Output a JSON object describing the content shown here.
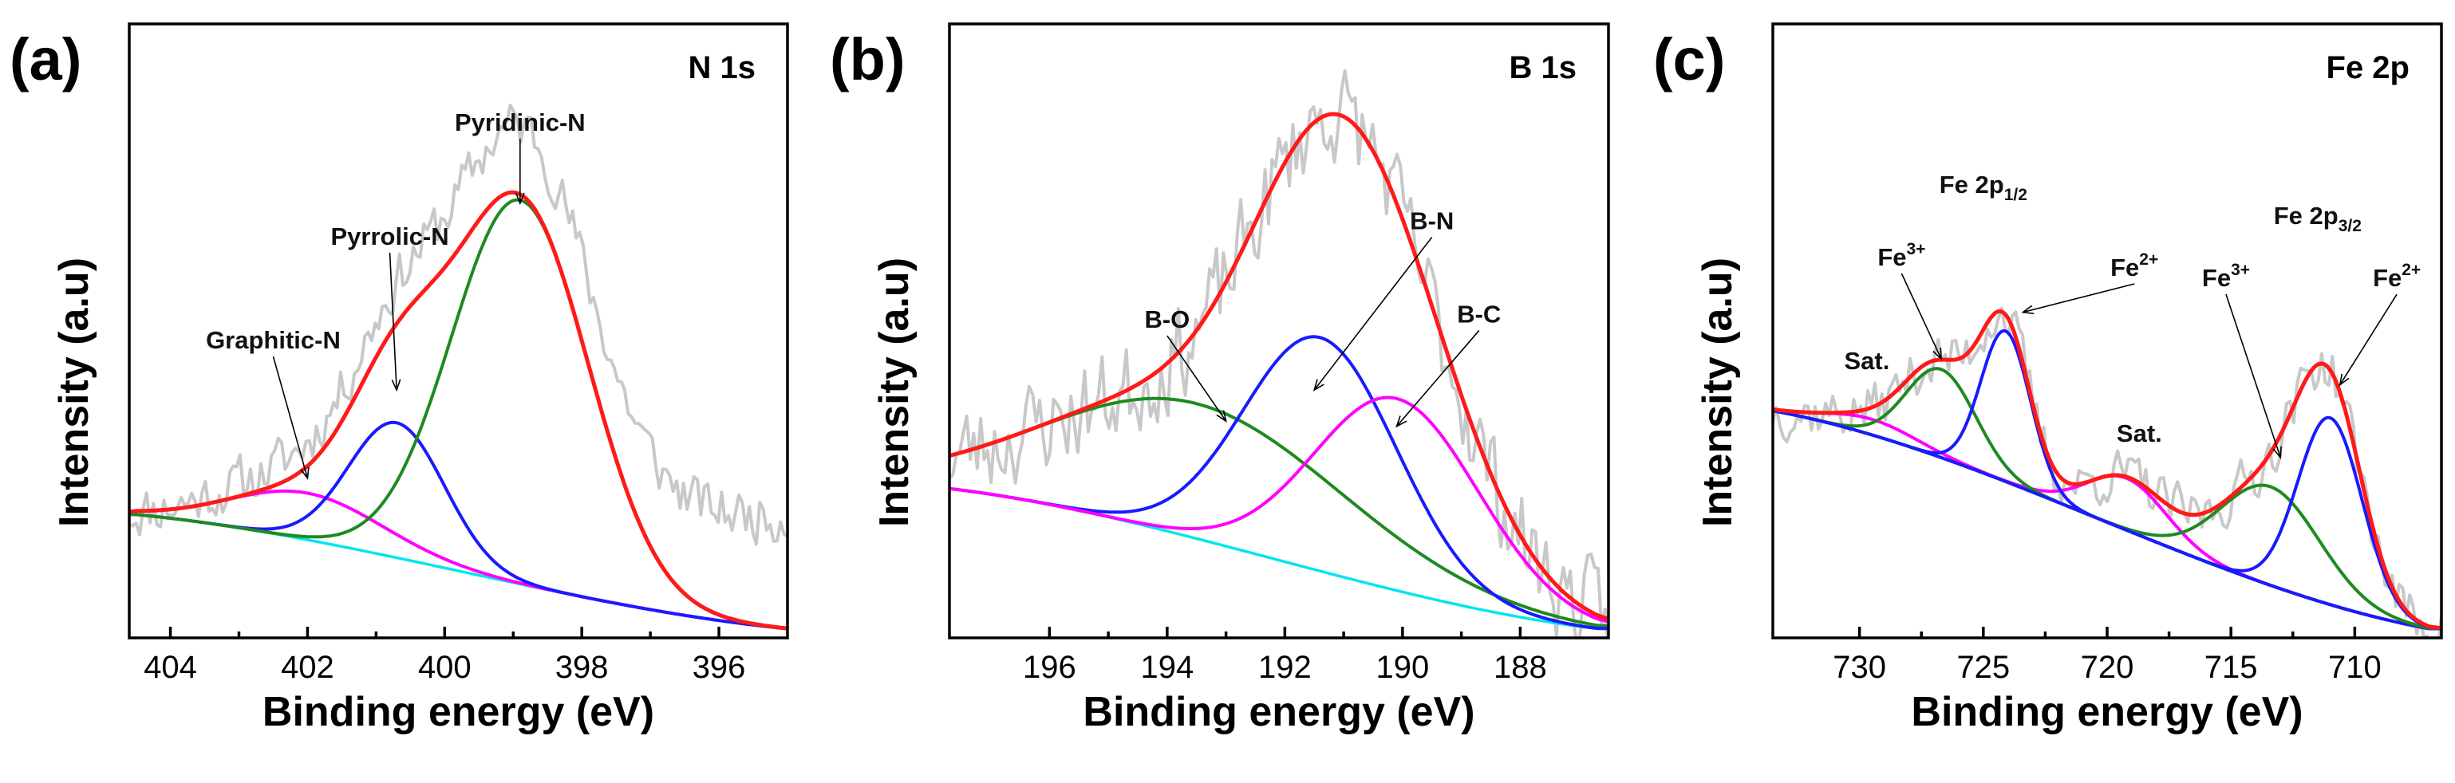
{
  "chart_data": [
    {
      "type": "line",
      "panel_label": "(a)",
      "title": "N 1s",
      "xlabel": "Binding energy (eV)",
      "ylabel": "Intensity (a.u)",
      "xlim": [
        404.6,
        395
      ],
      "ylim": [
        0,
        1
      ],
      "xticks": [
        404,
        402,
        400,
        398,
        396
      ],
      "series": [
        {
          "name": "raw",
          "color": "#c8c8c8",
          "width": 4,
          "kind": "noisy",
          "seed": 11,
          "noise": 0.045,
          "base": [
            [
              404.5,
              0.22
            ],
            [
              0.0,
              0.0
            ]
          ],
          "peaks": [
            [
              398.9,
              0.74,
              1.0
            ],
            [
              400.7,
              0.26,
              0.7
            ],
            [
              402.0,
              0.09,
              1.1
            ]
          ]
        },
        {
          "name": "background",
          "color": "#00e5ee",
          "width": 3.5,
          "kind": "model",
          "base": [
            [
              404.5,
              0.22
            ],
            [
              395,
              0.0
            ]
          ],
          "peaks": []
        },
        {
          "name": "Graphitic-N",
          "color": "#ff00ff",
          "width": 4,
          "kind": "model",
          "base": [
            [
              404.5,
              0.22
            ],
            [
              395,
              0.0
            ]
          ],
          "peaks": [
            [
              402.0,
              0.09,
              1.1
            ]
          ]
        },
        {
          "name": "Pyrrolic-N",
          "color": "#1a1aff",
          "width": 4,
          "kind": "model",
          "base": [
            [
              404.5,
              0.22
            ],
            [
              395,
              0.0
            ]
          ],
          "peaks": [
            [
              400.7,
              0.26,
              0.7
            ]
          ]
        },
        {
          "name": "Pyridinic-N",
          "color": "#1f8a1f",
          "width": 4,
          "kind": "model",
          "base": [
            [
              404.5,
              0.22
            ],
            [
              395,
              0.0
            ]
          ],
          "peaks": [
            [
              398.9,
              0.74,
              1.0
            ]
          ]
        },
        {
          "name": "envelope",
          "color": "#ff1a1a",
          "width": 5,
          "kind": "model",
          "base": [
            [
              404.5,
              0.22
            ],
            [
              395,
              0.0
            ]
          ],
          "peaks": [
            [
              398.9,
              0.74,
              1.0
            ],
            [
              400.7,
              0.26,
              0.7
            ],
            [
              402.0,
              0.09,
              1.1
            ]
          ]
        }
      ],
      "annotations": [
        {
          "text": "Pyridinic-N",
          "x": 398.9,
          "y": 0.96,
          "tx": 398.9,
          "ty": 0.82
        },
        {
          "text": "Pyrrolic-N",
          "x": 400.8,
          "y": 0.74,
          "tx": 400.7,
          "ty": 0.46
        },
        {
          "text": "Graphitic-N",
          "x": 402.5,
          "y": 0.54,
          "tx": 402.0,
          "ty": 0.29
        }
      ]
    },
    {
      "type": "line",
      "panel_label": "(b)",
      "title": "B 1s",
      "xlabel": "Binding energy (eV)",
      "ylabel": "Intensity (a.u)",
      "xlim": [
        197.7,
        186.5
      ],
      "ylim": [
        0,
        1
      ],
      "xticks": [
        196,
        194,
        192,
        190,
        188
      ],
      "series": [
        {
          "name": "raw",
          "color": "#c8c8c8",
          "width": 4,
          "kind": "noisy",
          "seed": 23,
          "noise": 0.085,
          "base": [
            [
              197.7,
              0.27
            ],
            [
              186.7,
              0.0
            ]
          ],
          "peaks": [
            [
              193.5,
              0.26,
              2.5
            ],
            [
              191.4,
              0.45,
              1.3
            ],
            [
              190.1,
              0.37,
              1.4
            ]
          ]
        },
        {
          "name": "background",
          "color": "#00e5ee",
          "width": 3.5,
          "kind": "model",
          "base": [
            [
              197.7,
              0.27
            ],
            [
              186.7,
              0.0
            ]
          ],
          "peaks": []
        },
        {
          "name": "B-O",
          "color": "#1f8a1f",
          "width": 4,
          "kind": "model",
          "base": [
            [
              197.7,
              0.27
            ],
            [
              186.7,
              0.0
            ]
          ],
          "peaks": [
            [
              193.5,
              0.26,
              2.5
            ]
          ]
        },
        {
          "name": "B-N",
          "color": "#1a1aff",
          "width": 4,
          "kind": "model",
          "base": [
            [
              197.7,
              0.27
            ],
            [
              186.7,
              0.0
            ]
          ],
          "peaks": [
            [
              191.4,
              0.45,
              1.3
            ]
          ]
        },
        {
          "name": "B-C",
          "color": "#ff00ff",
          "width": 4,
          "kind": "model",
          "base": [
            [
              197.7,
              0.27
            ],
            [
              186.7,
              0.0
            ]
          ],
          "peaks": [
            [
              190.1,
              0.37,
              1.4
            ]
          ]
        },
        {
          "name": "envelope",
          "color": "#ff1a1a",
          "width": 5,
          "kind": "model",
          "base": [
            [
              197.7,
              0.27
            ],
            [
              186.7,
              0.0
            ]
          ],
          "peaks": [
            [
              193.5,
              0.26,
              2.5
            ],
            [
              191.4,
              0.45,
              1.3
            ],
            [
              190.1,
              0.37,
              1.4
            ]
          ]
        }
      ],
      "annotations": [
        {
          "text": "B-O",
          "x": 194.0,
          "y": 0.58,
          "tx": 193.0,
          "ty": 0.4
        },
        {
          "text": "B-N",
          "x": 189.5,
          "y": 0.77,
          "tx": 191.5,
          "ty": 0.46
        },
        {
          "text": "B-C",
          "x": 188.7,
          "y": 0.59,
          "tx": 190.1,
          "ty": 0.39
        }
      ]
    },
    {
      "type": "line",
      "panel_label": "(c)",
      "title": "Fe 2p",
      "xlabel": "Binding energy (eV)",
      "ylabel": "Intensity (a.u)",
      "xlim": [
        733.5,
        706.5
      ],
      "ylim": [
        0,
        1
      ],
      "xticks": [
        730,
        725,
        720,
        715,
        710
      ],
      "series": [
        {
          "name": "raw",
          "color": "#c8c8c8",
          "width": 4,
          "kind": "noisy",
          "seed": 37,
          "noise": 0.045,
          "base": [
            [
              733.5,
              0.42
            ],
            [
              707,
              0.0
            ]
          ],
          "peaks": [
            [
              729.5,
              0.03,
              1.8
            ],
            [
              726.7,
              0.17,
              1.4
            ],
            [
              724.1,
              0.29,
              1.0
            ],
            [
              719.2,
              0.1,
              1.6
            ],
            [
              713.4,
              0.19,
              2.0
            ],
            [
              711.0,
              0.36,
              1.3
            ]
          ]
        },
        {
          "name": "background",
          "color": "#00e5ee",
          "width": 3.5,
          "kind": "model",
          "base": [
            [
              733.5,
              0.42
            ],
            [
              707,
              0.0
            ]
          ],
          "peaks": []
        },
        {
          "name": "Sat.",
          "color": "#ff00ff",
          "width": 4,
          "kind": "model",
          "base": [
            [
              733.5,
              0.42
            ],
            [
              707,
              0.0
            ]
          ],
          "peaks": [
            [
              729.5,
              0.03,
              1.8
            ],
            [
              719.2,
              0.1,
              1.6
            ]
          ]
        },
        {
          "name": "Fe3+ (2p1/2)",
          "color": "#1f8a1f",
          "width": 4,
          "kind": "model",
          "base": [
            [
              733.5,
              0.42
            ],
            [
              707,
              0.0
            ]
          ],
          "peaks": [
            [
              726.7,
              0.17,
              1.4
            ]
          ]
        },
        {
          "name": "Fe2+ (2p1/2)",
          "color": "#1a1aff",
          "width": 4,
          "kind": "model",
          "base": [
            [
              733.5,
              0.42
            ],
            [
              707,
              0.0
            ]
          ],
          "peaks": [
            [
              724.1,
              0.29,
              1.0
            ]
          ]
        },
        {
          "name": "Fe3+ (2p3/2)",
          "color": "#1f8a1f",
          "width": 4,
          "kind": "model",
          "base": [
            [
              733.5,
              0.42
            ],
            [
              707,
              0.0
            ]
          ],
          "peaks": [
            [
              713.4,
              0.19,
              2.0
            ]
          ]
        },
        {
          "name": "Fe2+ (2p3/2)",
          "color": "#1a1aff",
          "width": 4,
          "kind": "model",
          "base": [
            [
              733.5,
              0.42
            ],
            [
              707,
              0.0
            ]
          ],
          "peaks": [
            [
              711.0,
              0.36,
              1.3
            ]
          ]
        },
        {
          "name": "envelope",
          "color": "#ff1a1a",
          "width": 5,
          "kind": "model",
          "base": [
            [
              733.5,
              0.42
            ],
            [
              707,
              0.0
            ]
          ],
          "peaks": [
            [
              729.5,
              0.03,
              1.8
            ],
            [
              726.7,
              0.17,
              1.4
            ],
            [
              724.1,
              0.29,
              1.0
            ],
            [
              719.2,
              0.1,
              1.6
            ],
            [
              713.4,
              0.19,
              2.0
            ],
            [
              711.0,
              0.36,
              1.3
            ]
          ]
        }
      ],
      "annotations": [
        {
          "text": "Sat.",
          "x": 729.7,
          "y": 0.5,
          "tx": null,
          "ty": null
        },
        {
          "text": "Fe",
          "sup": "3+",
          "x": 728.3,
          "y": 0.7,
          "tx": 726.7,
          "ty": 0.52
        },
        {
          "text": "Fe 2p",
          "sub": "1/2",
          "x": 725.0,
          "y": 0.84,
          "tx": null,
          "ty": null
        },
        {
          "text": "Fe",
          "sup": "2+",
          "x": 718.9,
          "y": 0.68,
          "tx": 723.4,
          "ty": 0.61
        },
        {
          "text": "Sat.",
          "x": 718.7,
          "y": 0.36,
          "tx": null,
          "ty": null
        },
        {
          "text": "Fe 2p",
          "sub": "3/2",
          "x": 711.5,
          "y": 0.78,
          "tx": null,
          "ty": null
        },
        {
          "text": "Fe",
          "sup": "3+",
          "x": 715.2,
          "y": 0.66,
          "tx": 713.0,
          "ty": 0.33
        },
        {
          "text": "Fe",
          "sup": "2+",
          "x": 708.3,
          "y": 0.66,
          "tx": 710.6,
          "ty": 0.47
        }
      ]
    }
  ]
}
